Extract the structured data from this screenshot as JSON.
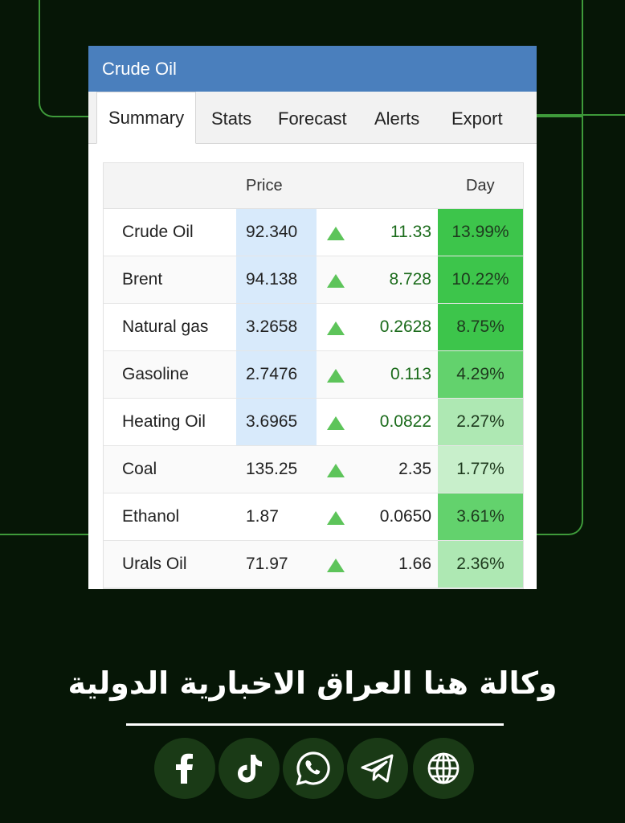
{
  "widget": {
    "title": "Crude Oil",
    "tabs": [
      "Summary",
      "Stats",
      "Forecast",
      "Alerts",
      "Export"
    ],
    "columns": {
      "price": "Price",
      "day": "Day"
    },
    "rows": [
      {
        "name": "Crude Oil",
        "price": "92.340",
        "change": "11.33",
        "day": "13.99%",
        "day_color": "#3dc54b",
        "price_highlight": true,
        "change_color": "green"
      },
      {
        "name": "Brent",
        "price": "94.138",
        "change": "8.728",
        "day": "10.22%",
        "day_color": "#3dc54b",
        "price_highlight": true,
        "change_color": "green"
      },
      {
        "name": "Natural gas",
        "price": "3.2658",
        "change": "0.2628",
        "day": "8.75%",
        "day_color": "#3dc54b",
        "price_highlight": true,
        "change_color": "green"
      },
      {
        "name": "Gasoline",
        "price": "2.7476",
        "change": "0.113",
        "day": "4.29%",
        "day_color": "#63d26d",
        "price_highlight": true,
        "change_color": "green"
      },
      {
        "name": "Heating Oil",
        "price": "3.6965",
        "change": "0.0822",
        "day": "2.27%",
        "day_color": "#aee8b3",
        "price_highlight": true,
        "change_color": "green"
      },
      {
        "name": "Coal",
        "price": "135.25",
        "change": "2.35",
        "day": "1.77%",
        "day_color": "#c8efcb",
        "price_highlight": false,
        "change_color": "plain"
      },
      {
        "name": "Ethanol",
        "price": "1.87",
        "change": "0.0650",
        "day": "3.61%",
        "day_color": "#63d26d",
        "price_highlight": false,
        "change_color": "plain"
      },
      {
        "name": "Urals Oil",
        "price": "71.97",
        "change": "1.66",
        "day": "2.36%",
        "day_color": "#aee8b3",
        "price_highlight": false,
        "change_color": "plain"
      }
    ]
  },
  "agency_name": "وكالة هنا العراق الاخبارية الدولية",
  "social_icons": [
    "facebook-icon",
    "tiktok-icon",
    "whatsapp-icon",
    "telegram-icon",
    "globe-icon"
  ]
}
